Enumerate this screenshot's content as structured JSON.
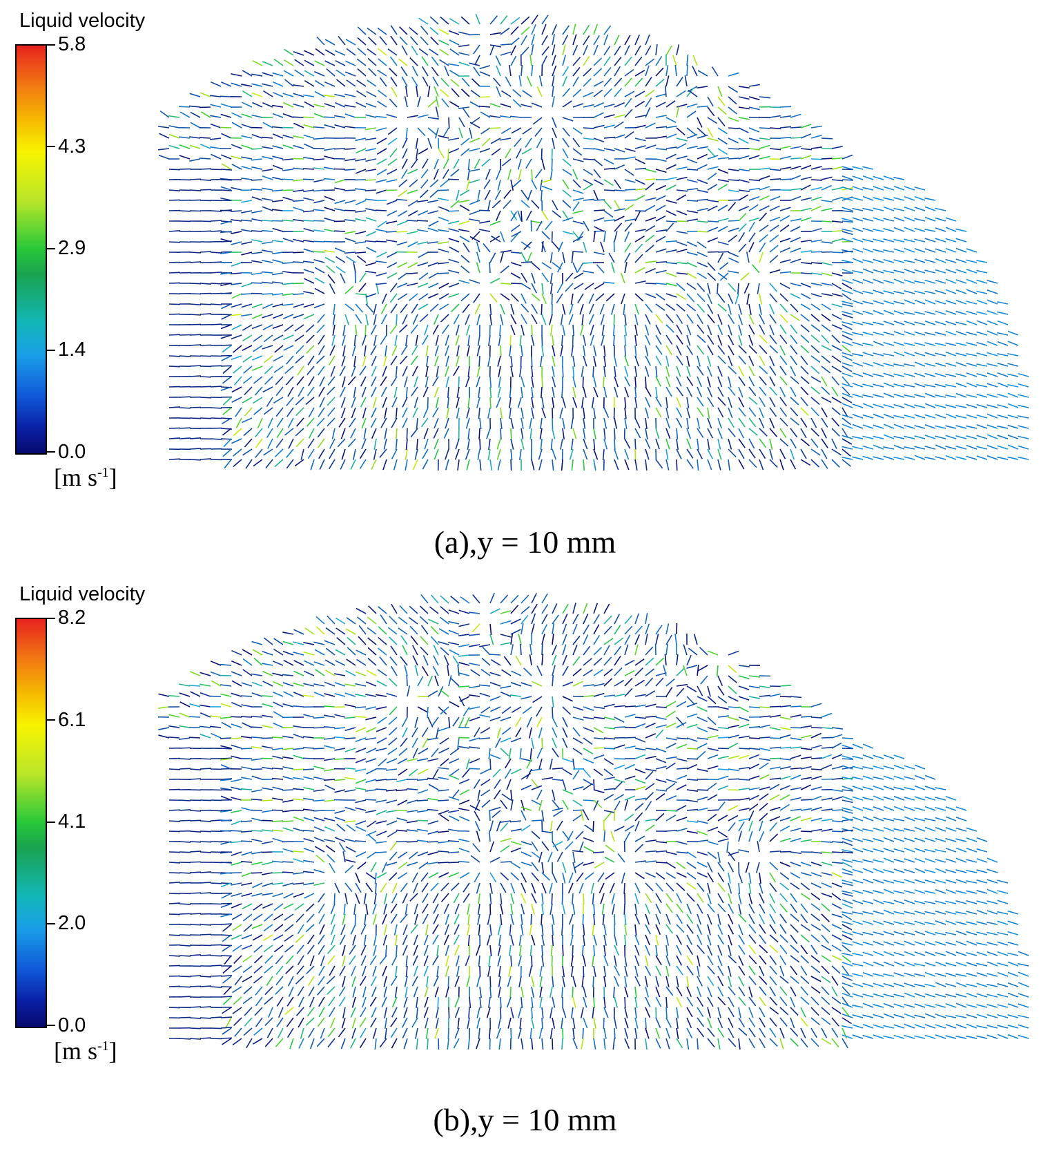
{
  "panels": [
    {
      "legend_title": "Liquid velocity",
      "ticks": [
        "5.8",
        "4.3",
        "2.9",
        "1.4",
        "0.0"
      ],
      "units_base": "[m s",
      "units_exp": "-1",
      "units_close": "]",
      "caption": "(a),y = 10 mm",
      "vmax": 5.8
    },
    {
      "legend_title": "Liquid velocity",
      "ticks": [
        "8.2",
        "6.1",
        "4.1",
        "2.0",
        "0.0"
      ],
      "units_base": "[m s",
      "units_exp": "-1",
      "units_close": "]",
      "caption": "(b),y = 10 mm",
      "vmax": 8.2
    }
  ],
  "colors": {
    "low": "#060a6e",
    "mid_low": "#1a9ee8",
    "mid": "#27c83a",
    "mid_high": "#f8f400",
    "high": "#e8231e"
  }
}
